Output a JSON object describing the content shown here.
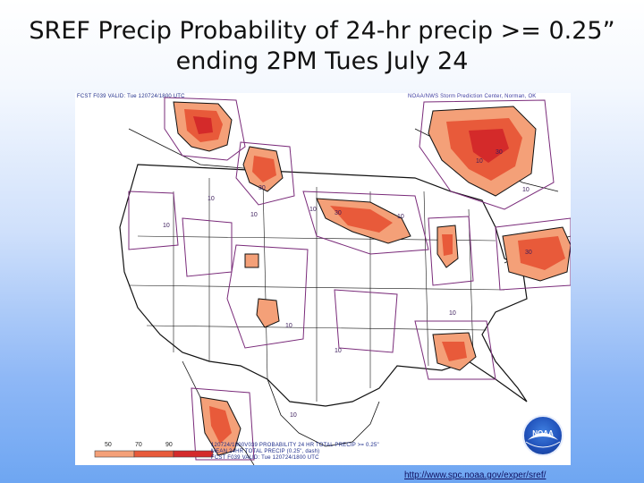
{
  "title": {
    "line1": "SREF Precip Probability of 24-hr precip >= 0.25”",
    "line2": "ending 2PM Tues July 24"
  },
  "map": {
    "header_left": "FCST F039 VALID: Tue 120724/1800 UTC",
    "header_right": "NOAA/NWS Storm Prediction Center, Norman, OK",
    "footer_line1": "120724/1800V039 PROBABILITY 24 HR TOTAL PRECIP >= 0.25\"",
    "footer_line2": "MEAN 24HR TOTAL PRECIP (0.25\", dash)",
    "footer_line3": "FCST F039 VALID: Tue 120724/1800 UTC",
    "legend": [
      "50",
      "70",
      "90"
    ],
    "contour_labels": [
      "10",
      "10",
      "10",
      "10",
      "10",
      "10",
      "10",
      "10",
      "10",
      "10",
      "10",
      "30",
      "30",
      "30",
      "30"
    ],
    "colors": {
      "p50": "#f4a078",
      "p70": "#e85a3a",
      "p90": "#d42a2a",
      "contour": "#7a2b7a",
      "border": "#111111"
    }
  },
  "logo": {
    "text": "NOAA"
  },
  "link": {
    "text": "http://www.spc.noaa.gov/exper/sref/"
  }
}
